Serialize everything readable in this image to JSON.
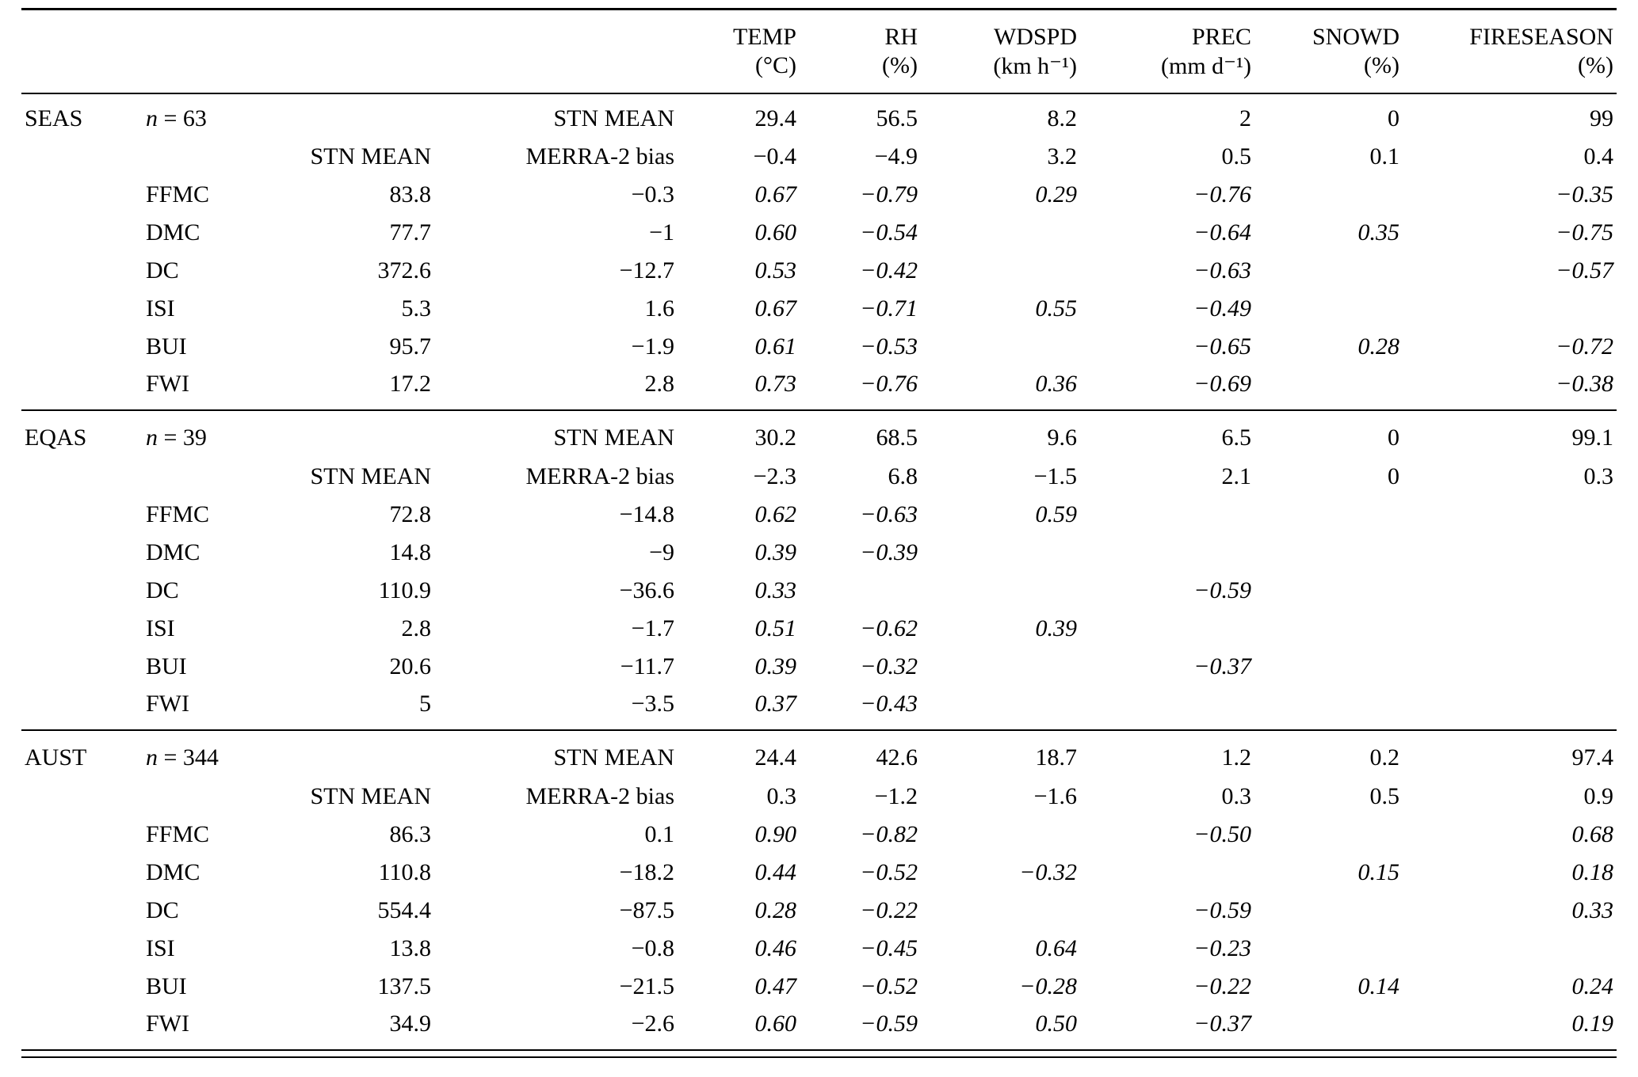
{
  "table": {
    "labels": {
      "stn_mean": "STN MEAN",
      "merra2_bias": "MERRA-2 bias"
    },
    "header": {
      "columns": [
        {
          "label": "TEMP",
          "unit": "(°C)"
        },
        {
          "label": "RH",
          "unit": "(%)"
        },
        {
          "label": "WDSPD",
          "unit": "(km h⁻¹)"
        },
        {
          "label": "PREC",
          "unit": "(mm d⁻¹)"
        },
        {
          "label": "SNOWD",
          "unit": "(%)"
        },
        {
          "label": "FIRESEASON",
          "unit": "(%)"
        }
      ]
    },
    "sections": [
      {
        "region": "SEAS",
        "n_label": "n = 63",
        "stn_mean": [
          "29.4",
          "56.5",
          "8.2",
          "2",
          "0",
          "99"
        ],
        "merra2_bias": [
          "−0.4",
          "−4.9",
          "3.2",
          "0.5",
          "0.1",
          "0.4"
        ],
        "rows": [
          {
            "index": "FFMC",
            "stn_mean": "83.8",
            "bias": "−0.3",
            "corr": [
              "0.67",
              "−0.79",
              "0.29",
              "−0.76",
              "",
              "−0.35"
            ]
          },
          {
            "index": "DMC",
            "stn_mean": "77.7",
            "bias": "−1",
            "corr": [
              "0.60",
              "−0.54",
              "",
              "−0.64",
              "0.35",
              "−0.75"
            ]
          },
          {
            "index": "DC",
            "stn_mean": "372.6",
            "bias": "−12.7",
            "corr": [
              "0.53",
              "−0.42",
              "",
              "−0.63",
              "",
              "−0.57"
            ]
          },
          {
            "index": "ISI",
            "stn_mean": "5.3",
            "bias": "1.6",
            "corr": [
              "0.67",
              "−0.71",
              "0.55",
              "−0.49",
              "",
              ""
            ]
          },
          {
            "index": "BUI",
            "stn_mean": "95.7",
            "bias": "−1.9",
            "corr": [
              "0.61",
              "−0.53",
              "",
              "−0.65",
              "0.28",
              "−0.72"
            ]
          },
          {
            "index": "FWI",
            "stn_mean": "17.2",
            "bias": "2.8",
            "corr": [
              "0.73",
              "−0.76",
              "0.36",
              "−0.69",
              "",
              "−0.38"
            ]
          }
        ]
      },
      {
        "region": "EQAS",
        "n_label": "n = 39",
        "stn_mean": [
          "30.2",
          "68.5",
          "9.6",
          "6.5",
          "0",
          "99.1"
        ],
        "merra2_bias": [
          "−2.3",
          "6.8",
          "−1.5",
          "2.1",
          "0",
          "0.3"
        ],
        "rows": [
          {
            "index": "FFMC",
            "stn_mean": "72.8",
            "bias": "−14.8",
            "corr": [
              "0.62",
              "−0.63",
              "0.59",
              "",
              "",
              ""
            ]
          },
          {
            "index": "DMC",
            "stn_mean": "14.8",
            "bias": "−9",
            "corr": [
              "0.39",
              "−0.39",
              "",
              "",
              "",
              ""
            ]
          },
          {
            "index": "DC",
            "stn_mean": "110.9",
            "bias": "−36.6",
            "corr": [
              "0.33",
              "",
              "",
              "−0.59",
              "",
              ""
            ]
          },
          {
            "index": "ISI",
            "stn_mean": "2.8",
            "bias": "−1.7",
            "corr": [
              "0.51",
              "−0.62",
              "0.39",
              "",
              "",
              ""
            ]
          },
          {
            "index": "BUI",
            "stn_mean": "20.6",
            "bias": "−11.7",
            "corr": [
              "0.39",
              "−0.32",
              "",
              "−0.37",
              "",
              ""
            ]
          },
          {
            "index": "FWI",
            "stn_mean": "5",
            "bias": "−3.5",
            "corr": [
              "0.37",
              "−0.43",
              "",
              "",
              "",
              ""
            ]
          }
        ]
      },
      {
        "region": "AUST",
        "n_label": "n = 344",
        "stn_mean": [
          "24.4",
          "42.6",
          "18.7",
          "1.2",
          "0.2",
          "97.4"
        ],
        "merra2_bias": [
          "0.3",
          "−1.2",
          "−1.6",
          "0.3",
          "0.5",
          "0.9"
        ],
        "rows": [
          {
            "index": "FFMC",
            "stn_mean": "86.3",
            "bias": "0.1",
            "corr": [
              "0.90",
              "−0.82",
              "",
              "−0.50",
              "",
              "0.68"
            ]
          },
          {
            "index": "DMC",
            "stn_mean": "110.8",
            "bias": "−18.2",
            "corr": [
              "0.44",
              "−0.52",
              "−0.32",
              "",
              "0.15",
              "0.18"
            ]
          },
          {
            "index": "DC",
            "stn_mean": "554.4",
            "bias": "−87.5",
            "corr": [
              "0.28",
              "−0.22",
              "",
              "−0.59",
              "",
              "0.33"
            ]
          },
          {
            "index": "ISI",
            "stn_mean": "13.8",
            "bias": "−0.8",
            "corr": [
              "0.46",
              "−0.45",
              "0.64",
              "−0.23",
              "",
              ""
            ]
          },
          {
            "index": "BUI",
            "stn_mean": "137.5",
            "bias": "−21.5",
            "corr": [
              "0.47",
              "−0.52",
              "−0.28",
              "−0.22",
              "0.14",
              "0.24"
            ]
          },
          {
            "index": "FWI",
            "stn_mean": "34.9",
            "bias": "−2.6",
            "corr": [
              "0.60",
              "−0.59",
              "0.50",
              "−0.37",
              "",
              "0.19"
            ]
          }
        ]
      }
    ]
  }
}
